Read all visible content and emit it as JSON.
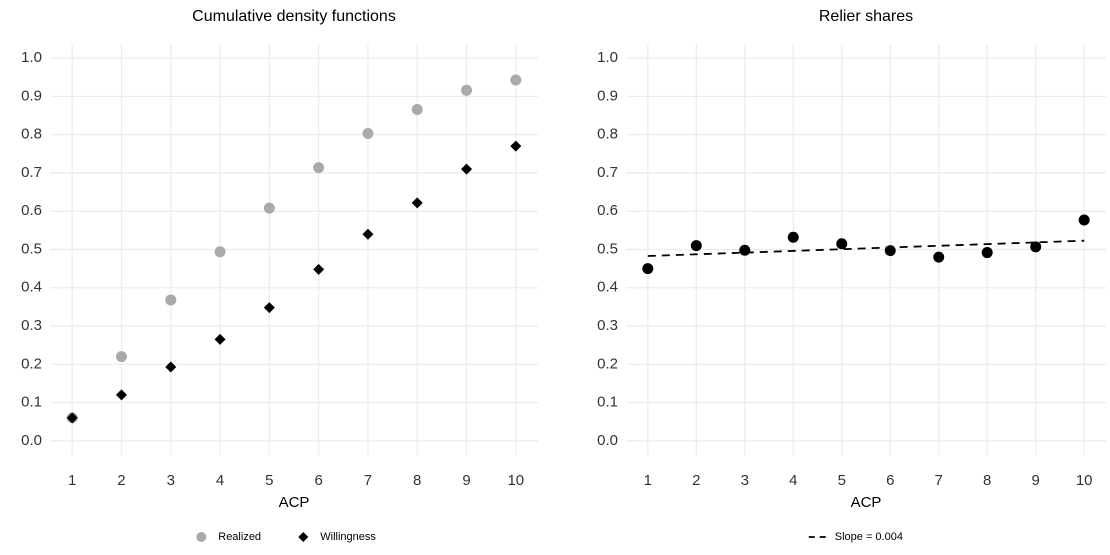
{
  "chart_data": [
    {
      "type": "scatter",
      "title": "Cumulative density functions",
      "x_label": "ACP",
      "x": [
        1,
        2,
        3,
        4,
        5,
        6,
        7,
        8,
        9,
        10
      ],
      "series": [
        {
          "name": "Realized",
          "color": "#aaaaaa",
          "marker": "circle",
          "values": [
            0.06,
            0.22,
            0.368,
            0.494,
            0.608,
            0.714,
            0.803,
            0.866,
            0.916,
            0.943
          ]
        },
        {
          "name": "Willingness",
          "color": "#000000",
          "marker": "diamond",
          "values": [
            0.06,
            0.12,
            0.193,
            0.265,
            0.348,
            0.448,
            0.54,
            0.622,
            0.71,
            0.77
          ]
        }
      ],
      "xlim": [
        0.55,
        10.45
      ],
      "xticks": [
        1,
        2,
        3,
        4,
        5,
        6,
        7,
        8,
        9,
        10
      ],
      "ylim": [
        -0.037,
        1.037
      ],
      "yticks": [
        {
          "value": 0,
          "label": "0.0"
        },
        0.1,
        0.2,
        0.3,
        0.4,
        0.5,
        0.6,
        0.7,
        0.8,
        0.9,
        {
          "value": 1,
          "label": "1.0"
        }
      ],
      "grid": true,
      "legend": "bottom"
    },
    {
      "type": "scatter",
      "title": "Relier shares",
      "x_label": "ACP",
      "x": [
        1,
        2,
        3,
        4,
        5,
        6,
        7,
        8,
        9,
        10
      ],
      "series": [
        {
          "color": "#000000",
          "marker": "circle",
          "values": [
            0.45,
            0.51,
            0.498,
            0.532,
            0.515,
            0.497,
            0.48,
            0.492,
            0.507,
            0.577
          ]
        },
        {
          "name": "Slope = 0.004",
          "color": "#000000",
          "linestyle": "dashed",
          "x": [
            1,
            10
          ],
          "values": [
            0.483,
            0.523
          ]
        }
      ],
      "xlim": [
        0.55,
        10.45
      ],
      "xticks": [
        1,
        2,
        3,
        4,
        5,
        6,
        7,
        8,
        9,
        10
      ],
      "ylim": [
        -0.037,
        1.037
      ],
      "yticks": [
        {
          "value": 0,
          "label": "0.0"
        },
        0.1,
        0.2,
        0.3,
        0.4,
        0.5,
        0.6,
        0.7,
        0.8,
        0.9,
        {
          "value": 1,
          "label": "1.0"
        }
      ],
      "grid": true,
      "legend": "bottom"
    }
  ]
}
